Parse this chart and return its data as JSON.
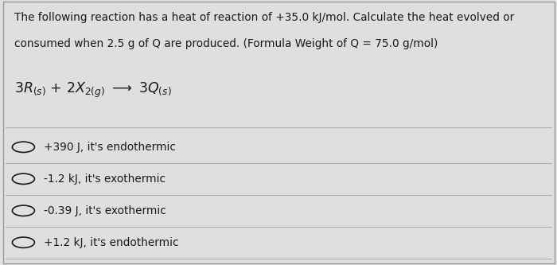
{
  "background_color": "#e0dede",
  "title_line1": "The following reaction has a heat of reaction of +35.0 kJ/mol. Calculate the heat evolved or",
  "title_line2": "consumed when 2.5 g of Q are produced. (Formula Weight of Q = 75.0 g/mol)",
  "options": [
    "+390 J, it's endothermic",
    "-1.2 kJ, it's exothermic",
    "-0.39 J, it's exothermic",
    "+1.2 kJ, it's endothermic"
  ],
  "text_color": "#1a1a1a",
  "line_color": "#b0b0b0",
  "font_size_body": 9.8,
  "font_size_reaction": 12.5,
  "font_size_options": 9.8,
  "fig_width": 7.0,
  "fig_height": 3.33,
  "dpi": 100
}
